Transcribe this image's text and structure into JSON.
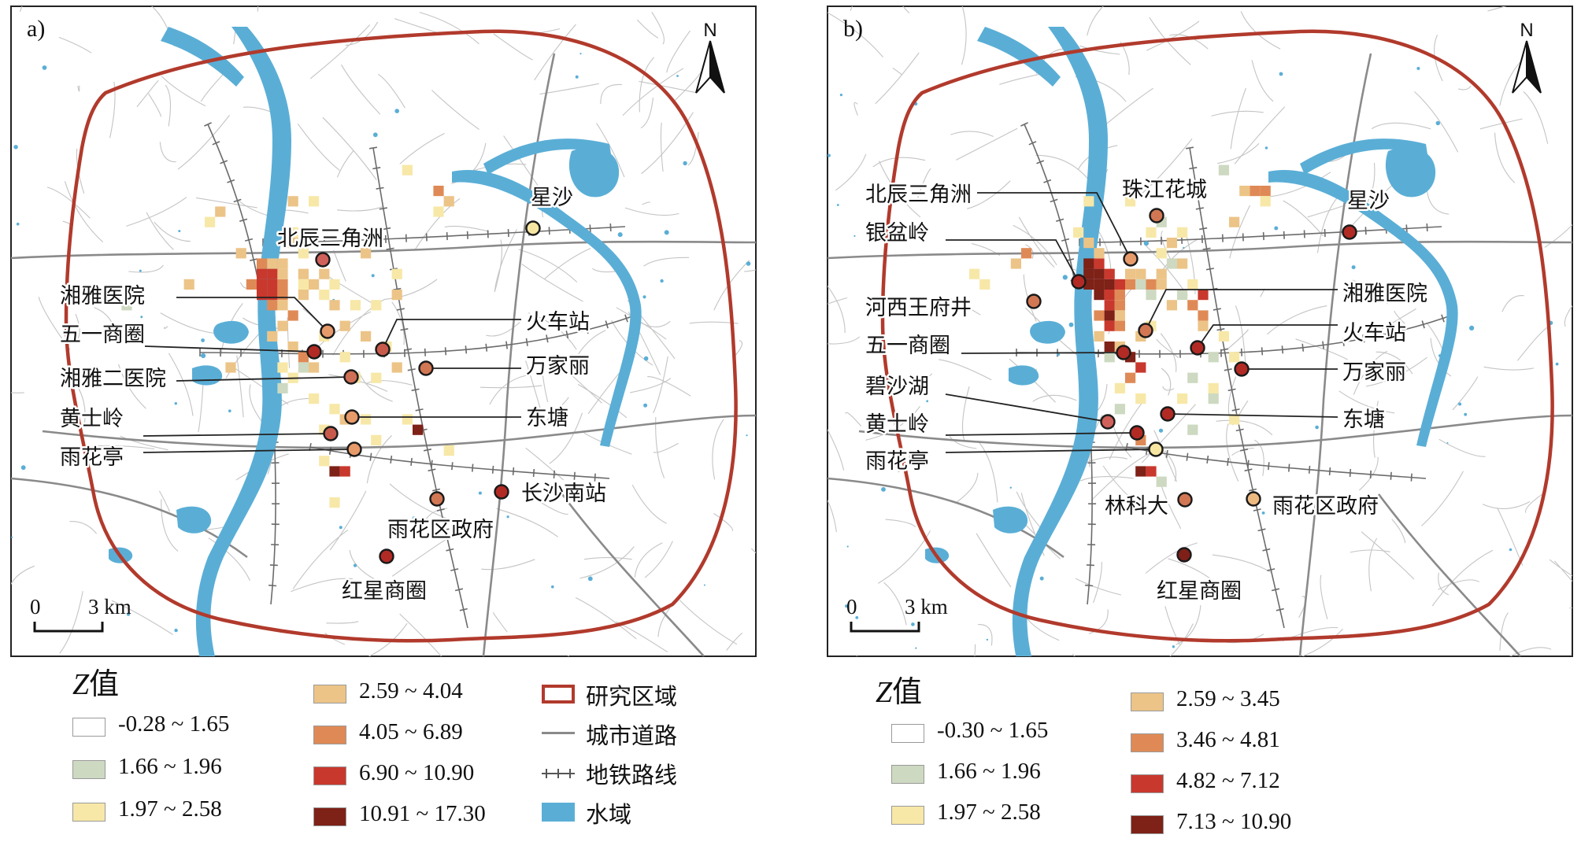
{
  "colors": {
    "water": "#5aaed6",
    "boundary": "#b13a2c",
    "road": "#c4c4c4",
    "arterial": "#8a8a8a",
    "metro": "#6b6b6b"
  },
  "north_label": "N",
  "scale": {
    "start": "0",
    "end": "3 km"
  },
  "panels": [
    {
      "label": "a)",
      "cells": [
        {
          "gx": 20,
          "gy": 23,
          "c": 5
        },
        {
          "gx": 21,
          "gy": 23,
          "c": 5
        },
        {
          "gx": 20,
          "gy": 24,
          "c": 5
        },
        {
          "gx": 21,
          "gy": 24,
          "c": 5
        },
        {
          "gx": 20,
          "gy": 25,
          "c": 5
        },
        {
          "gx": 21,
          "gy": 25,
          "c": 5
        },
        {
          "gx": 22,
          "gy": 25,
          "c": 4
        },
        {
          "gx": 22,
          "gy": 24,
          "c": 4
        },
        {
          "gx": 19,
          "gy": 24,
          "c": 4
        },
        {
          "gx": 22,
          "gy": 23,
          "c": 3
        },
        {
          "gx": 21,
          "gy": 22,
          "c": 3
        },
        {
          "gx": 20,
          "gy": 22,
          "c": 4
        },
        {
          "gx": 22,
          "gy": 22,
          "c": 3
        },
        {
          "gx": 21,
          "gy": 26,
          "c": 4
        },
        {
          "gx": 22,
          "gy": 26,
          "c": 3
        },
        {
          "gx": 23,
          "gy": 27,
          "c": 4
        },
        {
          "gx": 22,
          "gy": 28,
          "c": 3
        },
        {
          "gx": 21,
          "gy": 29,
          "c": 3
        },
        {
          "gx": 24,
          "gy": 24,
          "c": 2
        },
        {
          "gx": 24,
          "gy": 25,
          "c": 3
        },
        {
          "gx": 25,
          "gy": 24,
          "c": 3
        },
        {
          "gx": 24,
          "gy": 23,
          "c": 3
        },
        {
          "gx": 26,
          "gy": 25,
          "c": 2
        },
        {
          "gx": 26,
          "gy": 23,
          "c": 3
        },
        {
          "gx": 27,
          "gy": 24,
          "c": 2
        },
        {
          "gx": 23,
          "gy": 30,
          "c": 3
        },
        {
          "gx": 24,
          "gy": 31,
          "c": 4
        },
        {
          "gx": 25,
          "gy": 32,
          "c": 3
        },
        {
          "gx": 23,
          "gy": 33,
          "c": 2
        },
        {
          "gx": 22,
          "gy": 32,
          "c": 2
        },
        {
          "gx": 28,
          "gy": 28,
          "c": 3
        },
        {
          "gx": 26,
          "gy": 29,
          "c": 2
        },
        {
          "gx": 28,
          "gy": 31,
          "c": 2
        },
        {
          "gx": 30,
          "gy": 29,
          "c": 3
        },
        {
          "gx": 32,
          "gy": 30,
          "c": 2
        },
        {
          "gx": 29,
          "gy": 33,
          "c": 2
        },
        {
          "gx": 25,
          "gy": 35,
          "c": 2
        },
        {
          "gx": 27,
          "gy": 36,
          "c": 2
        },
        {
          "gx": 28,
          "gy": 37,
          "c": 3
        },
        {
          "gx": 26,
          "gy": 38,
          "c": 2
        },
        {
          "gx": 31,
          "gy": 39,
          "c": 2
        },
        {
          "gx": 34,
          "gy": 37,
          "c": 2
        },
        {
          "gx": 26,
          "gy": 41,
          "c": 2
        },
        {
          "gx": 27,
          "gy": 42,
          "c": 6
        },
        {
          "gx": 28,
          "gy": 42,
          "c": 5
        },
        {
          "gx": 27,
          "gy": 45,
          "c": 2
        },
        {
          "gx": 35,
          "gy": 38,
          "c": 6
        },
        {
          "gx": 30,
          "gy": 37,
          "c": 2
        },
        {
          "gx": 37,
          "gy": 15,
          "c": 4
        },
        {
          "gx": 38,
          "gy": 16,
          "c": 3
        },
        {
          "gx": 37,
          "gy": 17,
          "c": 2
        },
        {
          "gx": 34,
          "gy": 13,
          "c": 2
        },
        {
          "gx": 23,
          "gy": 16,
          "c": 3
        },
        {
          "gx": 25,
          "gy": 16,
          "c": 2
        },
        {
          "gx": 16,
          "gy": 17,
          "c": 3
        },
        {
          "gx": 15,
          "gy": 18,
          "c": 2
        },
        {
          "gx": 18,
          "gy": 21,
          "c": 3
        },
        {
          "gx": 13,
          "gy": 24,
          "c": 3
        },
        {
          "gx": 7,
          "gy": 26,
          "c": 1
        },
        {
          "gx": 17,
          "gy": 32,
          "c": 3
        },
        {
          "gx": 33,
          "gy": 23,
          "c": 2
        },
        {
          "gx": 33,
          "gy": 25,
          "c": 3
        },
        {
          "gx": 31,
          "gy": 26,
          "c": 2
        },
        {
          "gx": 30,
          "gy": 21,
          "c": 3
        },
        {
          "gx": 24,
          "gy": 21,
          "c": 2
        },
        {
          "gx": 23,
          "gy": 19,
          "c": 2
        },
        {
          "gx": 23,
          "gy": 20,
          "c": 3
        },
        {
          "gx": 27,
          "gy": 26,
          "c": 3
        },
        {
          "gx": 24,
          "gy": 32,
          "c": 1
        },
        {
          "gx": 22,
          "gy": 34,
          "c": 1
        },
        {
          "gx": 29,
          "gy": 26,
          "c": 2
        },
        {
          "gx": 31,
          "gy": 33,
          "c": 2
        },
        {
          "gx": 33,
          "gy": 32,
          "c": 3
        },
        {
          "gx": 38,
          "gy": 40,
          "c": 2
        }
      ],
      "places": [
        {
          "name": "北辰三角洲",
          "label": "北辰三角洲",
          "fill": "#d0605a"
        },
        {
          "name": "湘雅医院",
          "label": "湘雅医院",
          "fill": "#e79a6a"
        },
        {
          "name": "五一商圈",
          "label": "五一商圈",
          "fill": "#b22a24"
        },
        {
          "name": "湘雅二医院",
          "label": "湘雅二医院",
          "fill": "#cf6f55"
        },
        {
          "name": "黄士岭",
          "label": "黄士岭",
          "fill": "#c85a4c"
        },
        {
          "name": "雨花亭",
          "label": "雨花亭",
          "fill": "#e79a6a"
        },
        {
          "name": "火车站",
          "label": "火车站",
          "fill": "#c85a4c"
        },
        {
          "name": "万家丽",
          "label": "万家丽",
          "fill": "#d27753"
        },
        {
          "name": "东塘",
          "label": "东塘",
          "fill": "#e79a6a"
        },
        {
          "name": "星沙",
          "label": "星沙",
          "fill": "#f6e6a2"
        },
        {
          "name": "长沙南站",
          "label": "长沙南站",
          "fill": "#b22a24"
        },
        {
          "name": "雨花区政府",
          "label": "雨花区政府",
          "fill": "#d27753"
        },
        {
          "name": "红星商圈",
          "label": "红星商圈",
          "fill": "#b22a24"
        }
      ]
    },
    {
      "label": "b)",
      "cells": [
        {
          "gx": 21,
          "gy": 22,
          "c": 6
        },
        {
          "gx": 22,
          "gy": 22,
          "c": 5
        },
        {
          "gx": 21,
          "gy": 23,
          "c": 6
        },
        {
          "gx": 22,
          "gy": 23,
          "c": 6
        },
        {
          "gx": 23,
          "gy": 23,
          "c": 5
        },
        {
          "gx": 21,
          "gy": 24,
          "c": 6
        },
        {
          "gx": 22,
          "gy": 24,
          "c": 6
        },
        {
          "gx": 23,
          "gy": 24,
          "c": 6
        },
        {
          "gx": 24,
          "gy": 24,
          "c": 5
        },
        {
          "gx": 22,
          "gy": 25,
          "c": 6
        },
        {
          "gx": 23,
          "gy": 25,
          "c": 5
        },
        {
          "gx": 24,
          "gy": 25,
          "c": 4
        },
        {
          "gx": 25,
          "gy": 24,
          "c": 4
        },
        {
          "gx": 25,
          "gy": 23,
          "c": 3
        },
        {
          "gx": 26,
          "gy": 24,
          "c": 1
        },
        {
          "gx": 26,
          "gy": 23,
          "c": 3
        },
        {
          "gx": 27,
          "gy": 24,
          "c": 4
        },
        {
          "gx": 27,
          "gy": 25,
          "c": 1
        },
        {
          "gx": 28,
          "gy": 23,
          "c": 3
        },
        {
          "gx": 28,
          "gy": 24,
          "c": 3
        },
        {
          "gx": 23,
          "gy": 26,
          "c": 5
        },
        {
          "gx": 24,
          "gy": 26,
          "c": 4
        },
        {
          "gx": 22,
          "gy": 27,
          "c": 4
        },
        {
          "gx": 23,
          "gy": 27,
          "c": 6
        },
        {
          "gx": 24,
          "gy": 27,
          "c": 3
        },
        {
          "gx": 23,
          "gy": 28,
          "c": 5
        },
        {
          "gx": 24,
          "gy": 28,
          "c": 4
        },
        {
          "gx": 22,
          "gy": 29,
          "c": 3
        },
        {
          "gx": 23,
          "gy": 30,
          "c": 6
        },
        {
          "gx": 24,
          "gy": 30,
          "c": 3
        },
        {
          "gx": 23,
          "gy": 31,
          "c": 1
        },
        {
          "gx": 25,
          "gy": 31,
          "c": 6
        },
        {
          "gx": 26,
          "gy": 32,
          "c": 5
        },
        {
          "gx": 25,
          "gy": 33,
          "c": 4
        },
        {
          "gx": 24,
          "gy": 34,
          "c": 2
        },
        {
          "gx": 26,
          "gy": 29,
          "c": 3
        },
        {
          "gx": 27,
          "gy": 28,
          "c": 2
        },
        {
          "gx": 29,
          "gy": 26,
          "c": 3
        },
        {
          "gx": 30,
          "gy": 25,
          "c": 1
        },
        {
          "gx": 31,
          "gy": 24,
          "c": 2
        },
        {
          "gx": 31,
          "gy": 26,
          "c": 4
        },
        {
          "gx": 32,
          "gy": 25,
          "c": 5
        },
        {
          "gx": 32,
          "gy": 27,
          "c": 4
        },
        {
          "gx": 32,
          "gy": 28,
          "c": 3
        },
        {
          "gx": 30,
          "gy": 22,
          "c": 3
        },
        {
          "gx": 29,
          "gy": 20,
          "c": 3
        },
        {
          "gx": 30,
          "gy": 19,
          "c": 2
        },
        {
          "gx": 28,
          "gy": 21,
          "c": 2
        },
        {
          "gx": 29,
          "gy": 22,
          "c": 1
        },
        {
          "gx": 34,
          "gy": 29,
          "c": 2
        },
        {
          "gx": 33,
          "gy": 31,
          "c": 1
        },
        {
          "gx": 31,
          "gy": 33,
          "c": 1
        },
        {
          "gx": 33,
          "gy": 34,
          "c": 2
        },
        {
          "gx": 30,
          "gy": 35,
          "c": 2
        },
        {
          "gx": 26,
          "gy": 39,
          "c": 4
        },
        {
          "gx": 26,
          "gy": 42,
          "c": 6
        },
        {
          "gx": 27,
          "gy": 42,
          "c": 5
        },
        {
          "gx": 28,
          "gy": 43,
          "c": 1
        },
        {
          "gx": 24,
          "gy": 36,
          "c": 1
        },
        {
          "gx": 26,
          "gy": 35,
          "c": 2
        },
        {
          "gx": 25,
          "gy": 16,
          "c": 2
        },
        {
          "gx": 21,
          "gy": 16,
          "c": 2
        },
        {
          "gx": 20,
          "gy": 19,
          "c": 2
        },
        {
          "gx": 21,
          "gy": 20,
          "c": 3
        },
        {
          "gx": 22,
          "gy": 21,
          "c": 3
        },
        {
          "gx": 15,
          "gy": 21,
          "c": 4
        },
        {
          "gx": 14,
          "gy": 22,
          "c": 3
        },
        {
          "gx": 11,
          "gy": 24,
          "c": 2
        },
        {
          "gx": 10,
          "gy": 23,
          "c": 2
        },
        {
          "gx": 36,
          "gy": 15,
          "c": 3
        },
        {
          "gx": 37,
          "gy": 15,
          "c": 4
        },
        {
          "gx": 38,
          "gy": 15,
          "c": 4
        },
        {
          "gx": 38,
          "gy": 16,
          "c": 2
        },
        {
          "gx": 35,
          "gy": 18,
          "c": 3
        },
        {
          "gx": 34,
          "gy": 13,
          "c": 1
        },
        {
          "gx": 28,
          "gy": 18,
          "c": 1
        },
        {
          "gx": 27,
          "gy": 19,
          "c": 2
        },
        {
          "gx": 33,
          "gy": 35,
          "c": 1
        },
        {
          "gx": 35,
          "gy": 37,
          "c": 2
        },
        {
          "gx": 31,
          "gy": 38,
          "c": 1
        },
        {
          "gx": 35,
          "gy": 31,
          "c": 2
        }
      ],
      "places": [
        {
          "name": "北辰三角洲",
          "label": "北辰三角洲",
          "fill": "#e79a6a"
        },
        {
          "name": "银盆岭",
          "label": "银盆岭",
          "fill": "#b22a24"
        },
        {
          "name": "河西王府井",
          "label": "河西王府井",
          "fill": "#d27753"
        },
        {
          "name": "五一商圈",
          "label": "五一商圈",
          "fill": "#b22a24"
        },
        {
          "name": "碧沙湖",
          "label": "碧沙湖",
          "fill": "#d0605a"
        },
        {
          "name": "黄士岭",
          "label": "黄士岭",
          "fill": "#b22a24"
        },
        {
          "name": "雨花亭",
          "label": "雨花亭",
          "fill": "#f6e6a2"
        },
        {
          "name": "珠江花城",
          "label": "珠江花城",
          "fill": "#d27753"
        },
        {
          "name": "星沙",
          "label": "星沙",
          "fill": "#b22a24"
        },
        {
          "name": "湘雅医院",
          "label": "湘雅医院",
          "fill": "#d27753"
        },
        {
          "name": "火车站",
          "label": "火车站",
          "fill": "#b22a24"
        },
        {
          "name": "万家丽",
          "label": "万家丽",
          "fill": "#b22a24"
        },
        {
          "name": "东塘",
          "label": "东塘",
          "fill": "#b22a24"
        },
        {
          "name": "林科大",
          "label": "林科大",
          "fill": "#d27753"
        },
        {
          "name": "雨花区政府",
          "label": "雨花区政府",
          "fill": "#ecba80"
        },
        {
          "name": "红星商圈",
          "label": "红星商圈",
          "fill": "#7e1f18"
        }
      ]
    }
  ],
  "legend_a": {
    "title_var": "Z",
    "title_rest": "值",
    "classes": [
      {
        "label": "-0.28 ~ 1.65",
        "color": "#ffffff"
      },
      {
        "label": "1.66 ~ 1.96",
        "color": "#cdd9c1"
      },
      {
        "label": "1.97 ~ 2.58",
        "color": "#f7e8a8"
      },
      {
        "label": "2.59 ~ 4.04",
        "color": "#ecc488"
      },
      {
        "label": "4.05 ~ 6.89",
        "color": "#df8a56"
      },
      {
        "label": "6.90 ~ 10.90",
        "color": "#c9382d"
      },
      {
        "label": "10.91 ~ 17.30",
        "color": "#7e2117"
      }
    ],
    "features": [
      "研究区域",
      "城市道路",
      "地铁路线",
      "水域"
    ]
  },
  "legend_b": {
    "title_var": "Z",
    "title_rest": "值",
    "classes": [
      {
        "label": "-0.30 ~ 1.65",
        "color": "#ffffff"
      },
      {
        "label": "1.66 ~ 1.96",
        "color": "#cdd9c1"
      },
      {
        "label": "1.97 ~ 2.58",
        "color": "#f7e8a8"
      },
      {
        "label": "2.59 ~ 3.45",
        "color": "#ecc488"
      },
      {
        "label": "3.46 ~ 4.81",
        "color": "#df8a56"
      },
      {
        "label": "4.82 ~ 7.12",
        "color": "#c9382d"
      },
      {
        "label": "7.13 ~ 10.90",
        "color": "#7e2117"
      }
    ]
  }
}
